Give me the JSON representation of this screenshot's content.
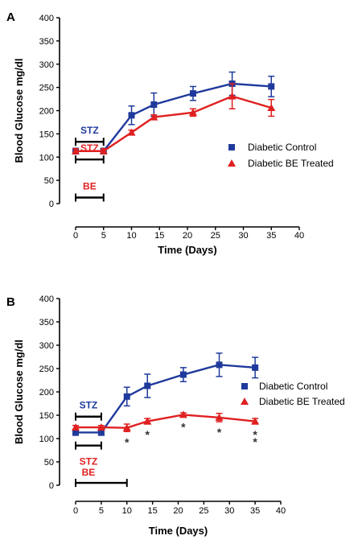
{
  "chart_data": [
    {
      "panel": "A",
      "type": "line",
      "xlabel": "Time (Days)",
      "ylabel": "Blood Glucose mg/dl",
      "xlim": [
        0,
        40
      ],
      "ylim": [
        0,
        400
      ],
      "xticks": [
        0,
        5,
        10,
        15,
        20,
        25,
        30,
        35,
        40
      ],
      "yticks": [
        0,
        50,
        100,
        150,
        200,
        250,
        300,
        350,
        400
      ],
      "legend_position": "right",
      "series": [
        {
          "name": "Diabetic Control",
          "color": "#1f3a9c",
          "marker": "square",
          "x": [
            0,
            5,
            10,
            14,
            21,
            28,
            35
          ],
          "y": [
            113,
            113,
            190,
            213,
            237,
            258,
            252
          ],
          "err": [
            6,
            6,
            20,
            25,
            15,
            25,
            22
          ]
        },
        {
          "name": "Diabetic BE Treated",
          "color": "#e02020",
          "marker": "triangle",
          "x": [
            0,
            5,
            10,
            14,
            21,
            28,
            35
          ],
          "y": [
            113,
            113,
            153,
            186,
            196,
            231,
            206
          ],
          "err": [
            5,
            5,
            5,
            5,
            8,
            27,
            18
          ]
        }
      ],
      "treatment_bars": [
        {
          "label": "STZ",
          "color": "#1f3a9c",
          "x": [
            0,
            5
          ],
          "y": 133
        },
        {
          "label": "STZ",
          "color": "#e02020",
          "x": [
            0,
            5
          ],
          "y": 95
        },
        {
          "label": "BE",
          "color": "#e02020",
          "x": [
            0,
            5
          ],
          "y": 13
        }
      ],
      "significance": []
    },
    {
      "panel": "B",
      "type": "line",
      "xlabel": "Time (Days)",
      "ylabel": "Blood Glucose mg/dl",
      "xlim": [
        0,
        40
      ],
      "ylim": [
        0,
        400
      ],
      "xticks": [
        0,
        5,
        10,
        15,
        20,
        25,
        30,
        35,
        40
      ],
      "yticks": [
        0,
        50,
        100,
        150,
        200,
        250,
        300,
        350,
        400
      ],
      "legend_position": "right",
      "series": [
        {
          "name": "Diabetic Control",
          "color": "#1f3a9c",
          "marker": "square",
          "x": [
            0,
            5,
            10,
            14,
            21,
            28,
            35
          ],
          "y": [
            113,
            113,
            190,
            213,
            237,
            258,
            252
          ],
          "err": [
            6,
            6,
            20,
            25,
            15,
            25,
            22
          ]
        },
        {
          "name": "Diabetic BE Treated",
          "color": "#e02020",
          "marker": "triangle",
          "x": [
            0,
            5,
            10,
            14,
            21,
            28,
            35
          ],
          "y": [
            124,
            124,
            123,
            137,
            151,
            145,
            137
          ],
          "err": [
            4,
            4,
            8,
            6,
            4,
            9,
            6
          ]
        }
      ],
      "treatment_bars": [
        {
          "label": "STZ",
          "color": "#1f3a9c",
          "x": [
            0,
            5
          ],
          "y": 147
        },
        {
          "label": "STZ",
          "color": "#e02020",
          "x": [
            0,
            5
          ],
          "y": 85
        },
        {
          "label": "BE",
          "color": "#e02020",
          "x": [
            0,
            10
          ],
          "y": 5
        }
      ],
      "significance": [
        {
          "x": 10,
          "label": "*"
        },
        {
          "x": 14,
          "label": "*"
        },
        {
          "x": 21,
          "label": "*"
        },
        {
          "x": 28,
          "label": "*"
        },
        {
          "x": 35,
          "label": "*"
        },
        {
          "x": 35,
          "label": "*"
        }
      ]
    }
  ]
}
